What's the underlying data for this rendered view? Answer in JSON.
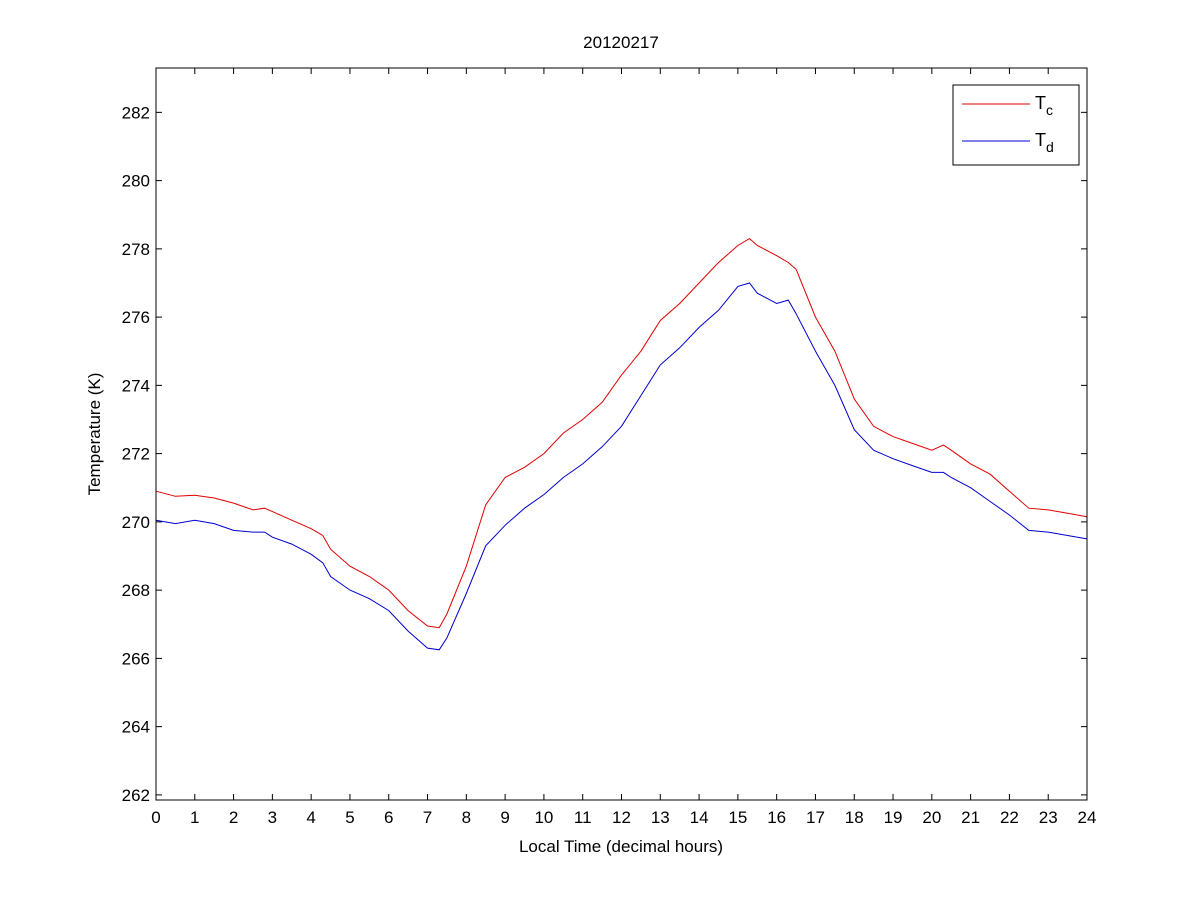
{
  "chart_data": {
    "type": "line",
    "title": "20120217",
    "xlabel": "Local Time (decimal hours)",
    "ylabel": "Temperature (K)",
    "xlim": [
      0,
      24
    ],
    "ylim": [
      261.85,
      283.3
    ],
    "xticks": [
      0,
      1,
      2,
      3,
      4,
      5,
      6,
      7,
      8,
      9,
      10,
      11,
      12,
      13,
      14,
      15,
      16,
      17,
      18,
      19,
      20,
      21,
      22,
      23,
      24
    ],
    "yticks": [
      262,
      264,
      266,
      268,
      270,
      272,
      274,
      276,
      278,
      280,
      282
    ],
    "grid": false,
    "legend_position": "top-right",
    "x": [
      0,
      0.5,
      1,
      1.5,
      2,
      2.5,
      2.8,
      3,
      3.5,
      4,
      4.3,
      4.5,
      5,
      5.5,
      6,
      6.5,
      7,
      7.3,
      7.5,
      8,
      8.5,
      9,
      9.5,
      10,
      10.5,
      11,
      11.5,
      12,
      12.5,
      13,
      13.5,
      14,
      14.5,
      15,
      15.3,
      15.5,
      16,
      16.3,
      16.5,
      17,
      17.5,
      18,
      18.5,
      19,
      19.5,
      20,
      20.3,
      20.5,
      21,
      21.5,
      22,
      22.5,
      23,
      23.5,
      24
    ],
    "series": [
      {
        "label_main": "T",
        "label_sub": "c",
        "color": "#e00000",
        "values": [
          270.9,
          270.75,
          270.78,
          270.7,
          270.55,
          270.35,
          270.4,
          270.3,
          270.05,
          269.8,
          269.6,
          269.2,
          268.7,
          268.4,
          268.0,
          267.4,
          266.95,
          266.9,
          267.3,
          268.7,
          270.5,
          271.3,
          271.6,
          272.0,
          272.6,
          273.0,
          273.5,
          274.3,
          275.0,
          275.9,
          276.4,
          277.0,
          277.6,
          278.1,
          278.3,
          278.1,
          277.8,
          277.6,
          277.4,
          276.0,
          275.0,
          273.6,
          272.8,
          272.5,
          272.3,
          272.1,
          272.25,
          272.1,
          271.7,
          271.4,
          270.9,
          270.4,
          270.35,
          270.25,
          270.15
        ]
      },
      {
        "label_main": "T",
        "label_sub": "d",
        "color": "#0000d0",
        "values": [
          270.05,
          269.95,
          270.05,
          269.95,
          269.75,
          269.7,
          269.7,
          269.55,
          269.35,
          269.05,
          268.8,
          268.4,
          268.0,
          267.75,
          267.4,
          266.8,
          266.3,
          266.25,
          266.6,
          267.9,
          269.3,
          269.9,
          270.4,
          270.8,
          271.3,
          271.7,
          272.2,
          272.8,
          273.7,
          274.6,
          275.1,
          275.7,
          276.2,
          276.9,
          277.0,
          276.7,
          276.4,
          276.5,
          276.1,
          275.0,
          274.0,
          272.7,
          272.1,
          271.85,
          271.65,
          271.45,
          271.45,
          271.3,
          271.0,
          270.6,
          270.2,
          269.75,
          269.7,
          269.6,
          269.5
        ]
      }
    ]
  }
}
